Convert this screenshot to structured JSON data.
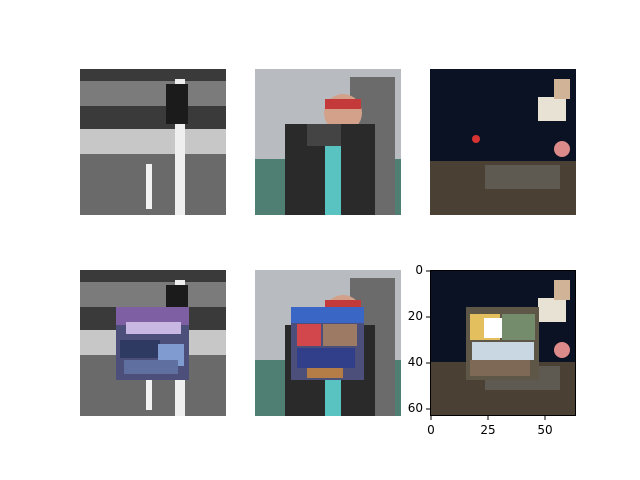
{
  "figure": {
    "rows": 2,
    "cols": 3,
    "tiles": [
      {
        "row": 0,
        "col": 0,
        "scene": "grayscale road sign scene"
      },
      {
        "row": 0,
        "col": 1,
        "scene": "person taking photo"
      },
      {
        "row": 0,
        "col": 2,
        "scene": "night skateboarder"
      },
      {
        "row": 1,
        "col": 0,
        "scene": "grayscale road sign scene with noise patch"
      },
      {
        "row": 1,
        "col": 1,
        "scene": "person taking photo with noise patch"
      },
      {
        "row": 1,
        "col": 2,
        "scene": "night skateboarder with noise patch"
      }
    ]
  },
  "last_axes": {
    "yticks": [
      "0",
      "20",
      "40",
      "60"
    ],
    "xticks": [
      "0",
      "25",
      "50"
    ]
  },
  "colors": {
    "background": "#ffffff",
    "axis": "#000000"
  }
}
